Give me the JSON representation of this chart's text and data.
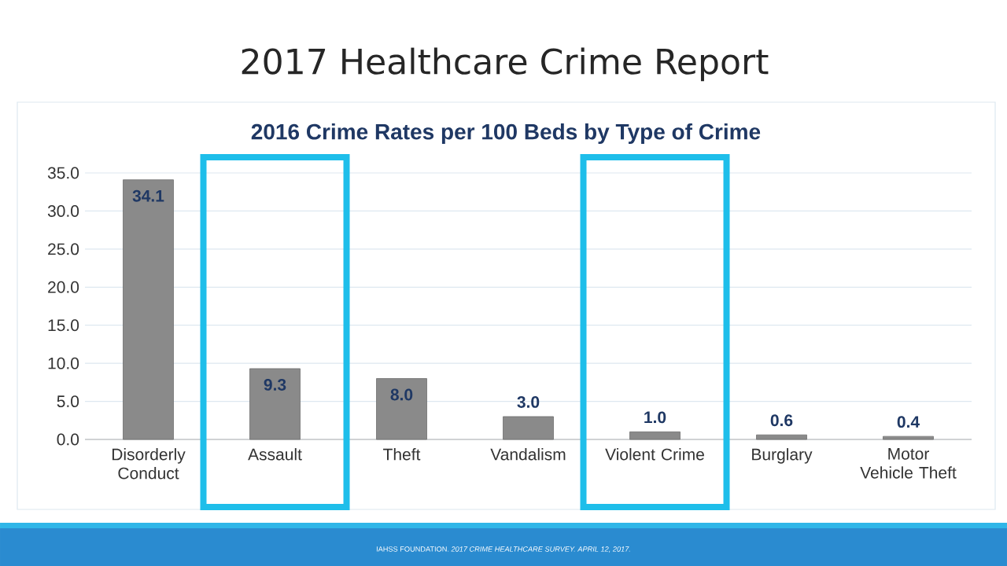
{
  "chart_data": {
    "type": "bar",
    "title": "2017 Healthcare Crime Report",
    "subtitle": "2016 Crime Rates per 100 Beds by Type of Crime",
    "categories": [
      "Disorderly Conduct",
      "Assault",
      "Theft",
      "Vandalism",
      "Violent Crime",
      "Burglary",
      "Motor Vehicle Theft"
    ],
    "values": [
      34.1,
      9.3,
      8.0,
      3.0,
      1.0,
      0.6,
      0.4
    ],
    "value_labels": [
      "34.1",
      "9.3",
      "8.0",
      "3.0",
      "1.0",
      "0.6",
      "0.4"
    ],
    "color": "#8a8a8a",
    "ylim": [
      0,
      35
    ],
    "yticks": [
      {
        "value": 0,
        "label": "0.0"
      },
      {
        "value": 5,
        "label": "5.0"
      },
      {
        "value": 10,
        "label": "10.0"
      },
      {
        "value": 15,
        "label": "15.0"
      },
      {
        "value": 20,
        "label": "20.0"
      },
      {
        "value": 25,
        "label": "25.0"
      },
      {
        "value": 30,
        "label": "30.0"
      },
      {
        "value": 35,
        "label": "35.0"
      }
    ],
    "grid": "y",
    "annotations": [
      "IAHSS FOUNDATION. *2017 CRIME HEALTHCARE SURVEY. APRIL 12, 2017.*"
    ]
  }
}
